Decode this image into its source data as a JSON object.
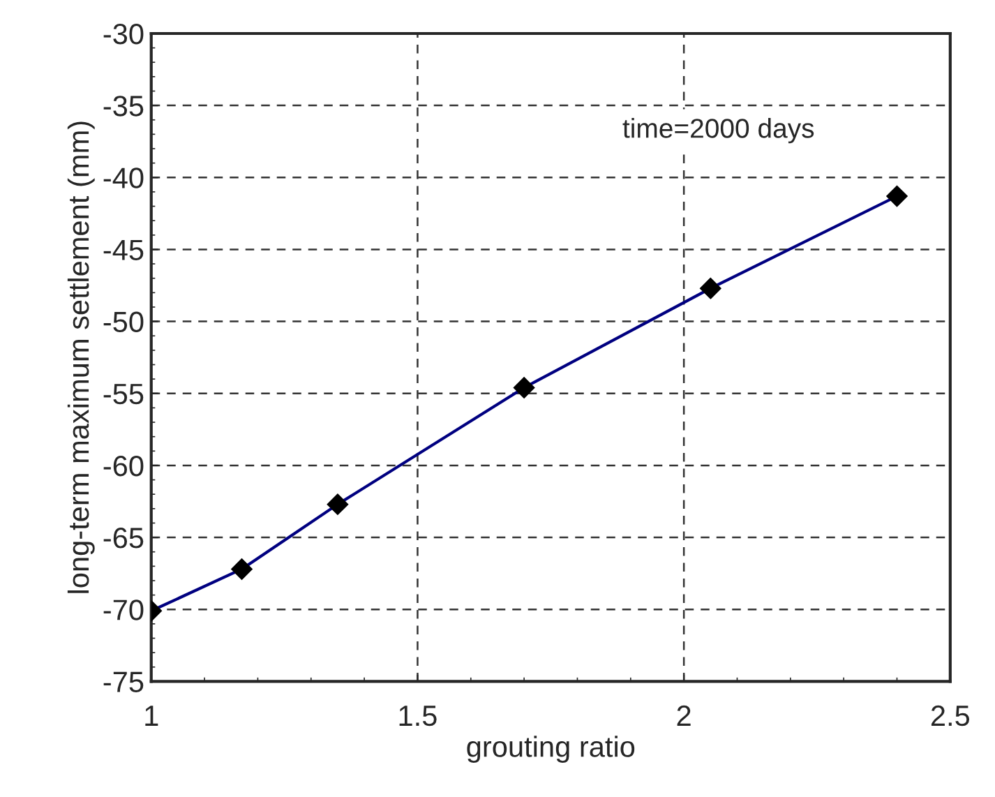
{
  "chart_data": {
    "type": "line",
    "xlabel": "grouting ratio",
    "ylabel": "long-term maximum settlement (mm)",
    "x": [
      1,
      1.17,
      1.35,
      1.7,
      2.05,
      2.4
    ],
    "series": [
      {
        "color": "#000080",
        "values": [
          -70.1,
          -67.2,
          -62.7,
          -54.6,
          -47.7,
          -41.3
        ]
      }
    ],
    "marker": "diamond",
    "line_style": "solid",
    "xlim": [
      1,
      2.5
    ],
    "xticks": [
      1,
      1.5,
      2,
      2.5
    ],
    "ylim": [
      -75,
      -30
    ],
    "yticks": [
      -75,
      -70,
      -65,
      -60,
      -55,
      -50,
      -45,
      -40,
      -35,
      -30
    ],
    "grid": true,
    "annotations": [
      "time=2000 days"
    ]
  }
}
